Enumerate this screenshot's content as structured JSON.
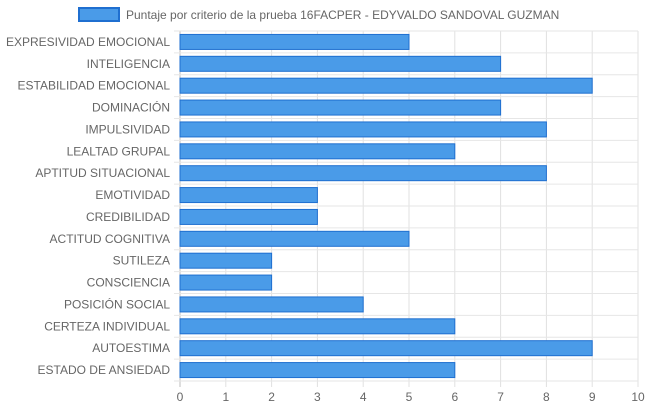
{
  "chart_data": {
    "type": "bar",
    "orientation": "horizontal",
    "categories": [
      "EXPRESIVIDAD EMOCIONAL",
      "INTELIGENCIA",
      "ESTABILIDAD EMOCIONAL",
      "DOMINACIÓN",
      "IMPULSIVIDAD",
      "LEALTAD GRUPAL",
      "APTITUD SITUACIONAL",
      "EMOTIVIDAD",
      "CREDIBILIDAD",
      "ACTITUD COGNITIVA",
      "SUTILEZA",
      "CONSCIENCIA",
      "POSICIÓN SOCIAL",
      "CERTEZA INDIVIDUAL",
      "AUTOESTIMA",
      "ESTADO DE ANSIEDAD"
    ],
    "series": [
      {
        "name": "Puntaje por criterio de la prueba 16FACPER - EDYVALDO SANDOVAL GUZMAN",
        "values": [
          5,
          7,
          9,
          7,
          8,
          6,
          8,
          3,
          3,
          5,
          2,
          2,
          4,
          6,
          9,
          6
        ],
        "color": "#4a9be8",
        "border_color": "#1f6fd0"
      }
    ],
    "xlim": [
      0,
      10
    ],
    "x_ticks": [
      "0",
      "1",
      "2",
      "3",
      "4",
      "5",
      "6",
      "7",
      "8",
      "9",
      "10"
    ],
    "grid": true,
    "legend_position": "top"
  }
}
